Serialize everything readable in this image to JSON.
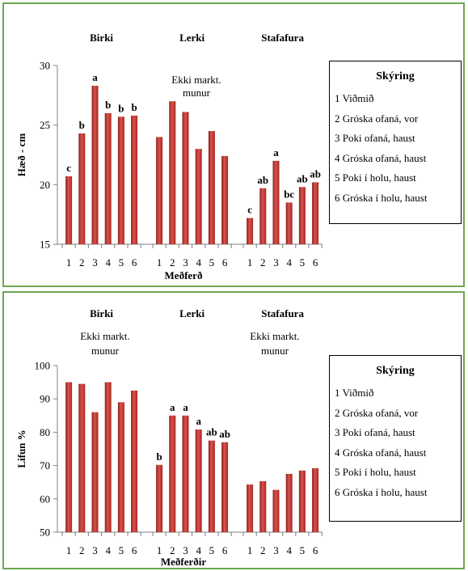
{
  "chart_data": [
    {
      "type": "bar",
      "ylabel": "Hæð - cm",
      "xlabel": "Meðferð",
      "ylim": [
        15,
        30
      ],
      "yticks": [
        15,
        20,
        25,
        30
      ],
      "groups": [
        {
          "name": "Birki",
          "note": "",
          "categories": [
            "1",
            "2",
            "3",
            "4",
            "5",
            "6"
          ],
          "values": [
            20.7,
            24.3,
            28.3,
            26.0,
            25.7,
            25.8
          ],
          "labels": [
            "c",
            "b",
            "a",
            "b",
            "b",
            "b"
          ]
        },
        {
          "name": "Lerki",
          "note": "Ekki markt. munur",
          "categories": [
            "1",
            "2",
            "3",
            "4",
            "5",
            "6"
          ],
          "values": [
            24.0,
            27.0,
            26.1,
            23.0,
            24.5,
            22.4
          ],
          "labels": [
            "",
            "",
            "",
            "",
            "",
            ""
          ]
        },
        {
          "name": "Stafafura",
          "note": "",
          "categories": [
            "1",
            "2",
            "3",
            "4",
            "5",
            "6"
          ],
          "values": [
            17.2,
            19.7,
            22.0,
            18.5,
            19.8,
            20.2
          ],
          "labels": [
            "c",
            "ab",
            "a",
            "bc",
            "ab",
            "ab"
          ]
        }
      ],
      "color": "#c0392b",
      "legend": {
        "title": "Skýring",
        "items": [
          "1 Viðmið",
          "2 Gróska ofaná, vor",
          "3 Poki ofaná, haust",
          "4 Gróska ofaná, haust",
          "5 Poki í holu, haust",
          "6 Gróska í holu, haust"
        ],
        "position": "right"
      }
    },
    {
      "type": "bar",
      "ylabel": "Lifun %",
      "xlabel": "Meðferðir",
      "ylim": [
        50,
        100
      ],
      "yticks": [
        50,
        60,
        70,
        80,
        90,
        100
      ],
      "groups": [
        {
          "name": "Birki",
          "note": "Ekki markt. munur",
          "categories": [
            "1",
            "2",
            "3",
            "4",
            "5",
            "6"
          ],
          "values": [
            95.0,
            94.5,
            86.0,
            95.0,
            89.0,
            92.5
          ],
          "labels": [
            "",
            "",
            "",
            "",
            "",
            ""
          ]
        },
        {
          "name": "Lerki",
          "note": "",
          "categories": [
            "1",
            "2",
            "3",
            "4",
            "5",
            "6"
          ],
          "values": [
            70.2,
            85.0,
            85.0,
            80.8,
            77.5,
            77.0
          ],
          "labels": [
            "b",
            "a",
            "a",
            "a",
            "ab",
            "ab"
          ]
        },
        {
          "name": "Stafafura",
          "note": "Ekki markt. munur",
          "categories": [
            "1",
            "2",
            "3",
            "4",
            "5",
            "6"
          ],
          "values": [
            64.3,
            65.3,
            62.7,
            67.5,
            68.5,
            69.2
          ],
          "labels": [
            "",
            "",
            "",
            "",
            "",
            ""
          ]
        }
      ],
      "color": "#c0392b",
      "legend": {
        "title": "Skýring",
        "items": [
          "1 Viðmið",
          "2 Gróska ofaná, vor",
          "3 Poki ofaná, haust",
          "4 Gróska ofaná, haust",
          "5 Poki í holu, haust",
          "6 Gróska í holu, haust"
        ],
        "position": "right"
      }
    }
  ]
}
